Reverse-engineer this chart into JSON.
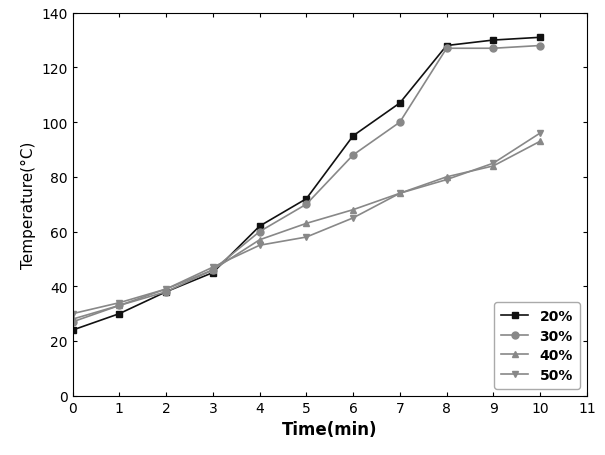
{
  "x": [
    0,
    1,
    2,
    3,
    4,
    5,
    6,
    7,
    8,
    9,
    10
  ],
  "series": {
    "20%": [
      24,
      30,
      38,
      45,
      62,
      72,
      95,
      107,
      128,
      130,
      131
    ],
    "30%": [
      27,
      33,
      38,
      46,
      60,
      70,
      88,
      100,
      127,
      127,
      128
    ],
    "40%": [
      28,
      33,
      39,
      46,
      57,
      63,
      68,
      74,
      80,
      84,
      93
    ],
    "50%": [
      30,
      34,
      39,
      47,
      55,
      58,
      65,
      74,
      79,
      85,
      96
    ]
  },
  "colors": {
    "20%": "#111111",
    "30%": "#888888",
    "40%": "#888888",
    "50%": "#888888"
  },
  "markers": {
    "20%": "s",
    "30%": "o",
    "40%": "^",
    "50%": "v"
  },
  "xlabel": "Time(min)",
  "ylabel": "Temperature(°C)",
  "xlim": [
    0,
    11
  ],
  "ylim": [
    0,
    140
  ],
  "xticks": [
    0,
    1,
    2,
    3,
    4,
    5,
    6,
    7,
    8,
    9,
    10,
    11
  ],
  "yticks": [
    0,
    20,
    40,
    60,
    80,
    100,
    120,
    140
  ],
  "background_color": "#ffffff"
}
